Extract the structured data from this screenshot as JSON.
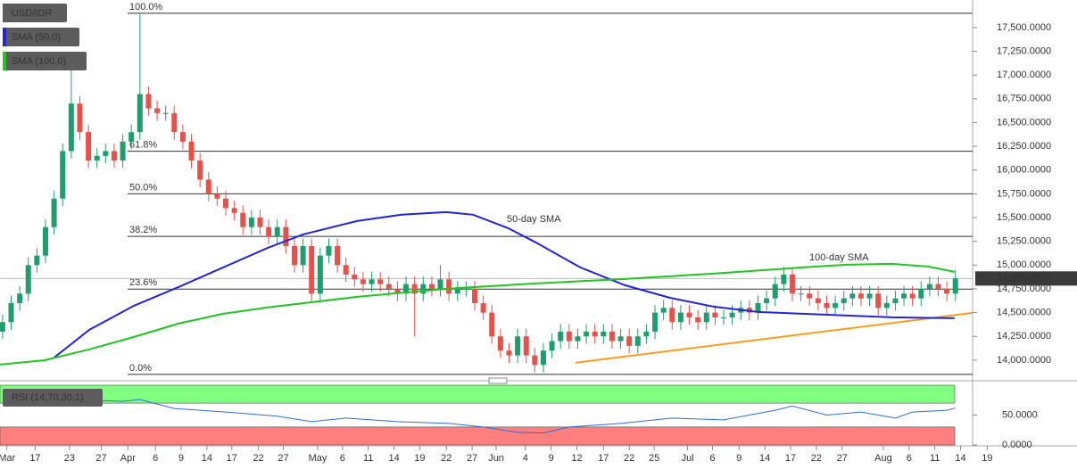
{
  "chart_data": [
    {
      "type": "candlestick",
      "candles": {
        "name": "USD/IDR",
        "up_color": "#1f9e6d",
        "down_color": "#e8504a",
        "open": [
          14300,
          14400,
          14600,
          14700,
          15000,
          15100,
          15400,
          15700,
          16200,
          16700,
          16400,
          16100,
          16150,
          16200,
          16100,
          16300,
          16400,
          16800,
          16650,
          16600,
          16600,
          16400,
          16300,
          16100,
          15900,
          15750,
          15700,
          15600,
          15550,
          15400,
          15500,
          15400,
          15300,
          15400,
          15200,
          15000,
          15200,
          14700,
          15100,
          15200,
          15000,
          14900,
          14850,
          14800,
          14850,
          14800,
          14750,
          14700,
          14800,
          14700,
          14800,
          14750,
          14850,
          14700,
          14750,
          14750,
          14600,
          14500,
          14250,
          14100,
          14050,
          14250,
          14050,
          13950,
          14100,
          14200,
          14300,
          14200,
          14250,
          14300,
          14250,
          14300,
          14200,
          14250,
          14150,
          14250,
          14300,
          14500,
          14550,
          14400,
          14500,
          14450,
          14400,
          14500,
          14450,
          14450,
          14500,
          14550,
          14500,
          14600,
          14650,
          14800,
          14900,
          14700,
          14700,
          14650,
          14600,
          14550,
          14600,
          14650,
          14700,
          14650,
          14700,
          14550,
          14600,
          14650,
          14700,
          14650,
          14750,
          14800,
          14750,
          14700
        ],
        "high": [
          14480,
          14680,
          14780,
          15080,
          15180,
          15480,
          15780,
          16280,
          17050,
          16780,
          16480,
          16230,
          16280,
          16280,
          16380,
          16480,
          17650,
          16880,
          16730,
          16680,
          16680,
          16480,
          16380,
          16180,
          15980,
          15830,
          15780,
          15680,
          15630,
          15580,
          15580,
          15480,
          15480,
          15480,
          15280,
          15280,
          15280,
          15180,
          15280,
          15280,
          15080,
          14980,
          14930,
          14930,
          14930,
          14880,
          14830,
          14880,
          14880,
          14880,
          14880,
          15000,
          14930,
          14830,
          14830,
          14830,
          14680,
          14580,
          14330,
          14180,
          14330,
          14330,
          14130,
          14180,
          14280,
          14380,
          14380,
          14330,
          14380,
          14380,
          14380,
          14380,
          14330,
          14330,
          14330,
          14380,
          14580,
          14630,
          14630,
          14580,
          14580,
          14530,
          14580,
          14580,
          14530,
          14580,
          14630,
          14630,
          14680,
          14730,
          14880,
          14980,
          14980,
          14780,
          14780,
          14730,
          14680,
          14680,
          14730,
          14780,
          14780,
          14780,
          14780,
          14680,
          14730,
          14780,
          14780,
          14830,
          14880,
          14880,
          14830,
          14950
        ],
        "low": [
          14220,
          14320,
          14520,
          14620,
          14920,
          15020,
          15320,
          15620,
          16120,
          16320,
          16020,
          16020,
          16070,
          16020,
          16020,
          16220,
          16320,
          16570,
          16520,
          16520,
          16320,
          16220,
          16020,
          15820,
          15670,
          15620,
          15520,
          15470,
          15320,
          15320,
          15320,
          15220,
          15220,
          15120,
          14920,
          14920,
          14620,
          14620,
          15020,
          14920,
          14820,
          14770,
          14720,
          14720,
          14720,
          14670,
          14620,
          14620,
          14250,
          14620,
          14670,
          14670,
          14620,
          14620,
          14670,
          14520,
          14420,
          14170,
          14020,
          13970,
          13970,
          13970,
          13870,
          13870,
          14020,
          14120,
          14120,
          14120,
          14170,
          14170,
          14170,
          14120,
          14120,
          14070,
          14070,
          14170,
          14220,
          14420,
          14320,
          14320,
          14370,
          14320,
          14320,
          14370,
          14370,
          14370,
          14420,
          14420,
          14420,
          14520,
          14570,
          14720,
          14620,
          14620,
          14570,
          14520,
          14470,
          14470,
          14520,
          14570,
          14570,
          14570,
          14470,
          14470,
          14520,
          14570,
          14570,
          14570,
          14670,
          14670,
          14620,
          14620
        ],
        "close": [
          14400,
          14600,
          14700,
          15000,
          15100,
          15400,
          15700,
          16200,
          16700,
          16400,
          16100,
          16150,
          16200,
          16100,
          16300,
          16400,
          16800,
          16650,
          16600,
          16600,
          16400,
          16300,
          16100,
          15900,
          15750,
          15700,
          15600,
          15550,
          15400,
          15500,
          15400,
          15300,
          15400,
          15200,
          15000,
          15200,
          14700,
          15100,
          15200,
          15000,
          14900,
          14850,
          14800,
          14850,
          14800,
          14750,
          14700,
          14800,
          14700,
          14800,
          14750,
          14850,
          14700,
          14750,
          14750,
          14600,
          14500,
          14250,
          14100,
          14050,
          14250,
          14050,
          13950,
          14100,
          14200,
          14300,
          14200,
          14250,
          14300,
          14250,
          14300,
          14200,
          14250,
          14150,
          14250,
          14300,
          14500,
          14550,
          14400,
          14500,
          14450,
          14400,
          14500,
          14450,
          14450,
          14500,
          14550,
          14500,
          14600,
          14650,
          14800,
          14900,
          14700,
          14700,
          14650,
          14600,
          14550,
          14600,
          14650,
          14700,
          14650,
          14700,
          14550,
          14600,
          14650,
          14700,
          14650,
          14750,
          14800,
          14750,
          14700,
          14860
        ]
      },
      "series": [
        {
          "name": "SMA (50,0)",
          "color": "#2323d8",
          "x": [
            5.9,
            10.1,
            15.3,
            20.5,
            25.7,
            30.9,
            35.0,
            41.3,
            46.5,
            51.7,
            54.8,
            58.9,
            62.1,
            67.3,
            72.5,
            77.7,
            82.8,
            88.0,
            93.2,
            98.4,
            103.6,
            110.9
          ],
          "values": [
            14019,
            14319,
            14572,
            14769,
            14976,
            15182,
            15323,
            15464,
            15530,
            15558,
            15530,
            15389,
            15239,
            14976,
            14788,
            14657,
            14563,
            14507,
            14488,
            14469,
            14450,
            14441
          ]
        },
        {
          "name": "SMA (100,0)",
          "color": "#22c41f",
          "x": [
            -0.3,
            4.9,
            10.1,
            15.3,
            20.5,
            25.7,
            30.9,
            41.3,
            51.7,
            62.1,
            72.5,
            82.8,
            93.2,
            98.4,
            103.6,
            107.8,
            110.9
          ],
          "values": [
            13953,
            13999,
            14113,
            14244,
            14385,
            14488,
            14554,
            14666,
            14751,
            14807,
            14854,
            14910,
            14976,
            15004,
            15013,
            14985,
            14929
          ]
        }
      ],
      "trendline": {
        "color": "#ff9a1a",
        "x": [
          66.7,
          113
        ],
        "values": [
          13972,
          14497
        ]
      },
      "annotations": [
        {
          "text": "50-day SMA",
          "color": "#4a4ae0"
        },
        {
          "text": "100-day SMA",
          "color": "#22b01f"
        }
      ],
      "fib_levels": [
        {
          "value": 17650,
          "label": "100.0%"
        },
        {
          "value": 16198,
          "label": "61.8%"
        },
        {
          "value": 15750,
          "label": "50.0%"
        },
        {
          "value": 15302,
          "label": "38.2%"
        },
        {
          "value": 14747,
          "label": "23.6%"
        },
        {
          "value": 13850,
          "label": "0.0%"
        }
      ],
      "last_price": {
        "value": 14859.05,
        "label": "14,859.0500"
      },
      "xlim": [
        -0.3,
        113
      ],
      "ylim": [
        13830,
        17790
      ],
      "yticks": [
        {
          "value": 14000,
          "label": "14,000.0000"
        },
        {
          "value": 14250,
          "label": "14,250.0000"
        },
        {
          "value": 14500,
          "label": "14,500.0000"
        },
        {
          "value": 14750,
          "label": "14,750.0000"
        },
        {
          "value": 15000,
          "label": "15,000.0000"
        },
        {
          "value": 15250,
          "label": "15,250.0000"
        },
        {
          "value": 15500,
          "label": "15,500.0000"
        },
        {
          "value": 15750,
          "label": "15,750.0000"
        },
        {
          "value": 16000,
          "label": "16,000.0000"
        },
        {
          "value": 16250,
          "label": "16,250.0000"
        },
        {
          "value": 16500,
          "label": "16,500.0000"
        },
        {
          "value": 16750,
          "label": "16,750.0000"
        },
        {
          "value": 17000,
          "label": "17,000.0000"
        },
        {
          "value": 17250,
          "label": "17,250.0000"
        },
        {
          "value": 17500,
          "label": "17,500.0000"
        }
      ],
      "xticks": [
        {
          "value": 0.5,
          "label": "Mar"
        },
        {
          "value": 3.8,
          "label": "17"
        },
        {
          "value": 7.8,
          "label": "23"
        },
        {
          "value": 11.5,
          "label": "27"
        },
        {
          "value": 14.6,
          "label": "Apr"
        },
        {
          "value": 17.8,
          "label": "6"
        },
        {
          "value": 20.8,
          "label": "9"
        },
        {
          "value": 23.8,
          "label": "14"
        },
        {
          "value": 26.7,
          "label": "17"
        },
        {
          "value": 29.8,
          "label": "22"
        },
        {
          "value": 32.7,
          "label": "27"
        },
        {
          "value": 36.7,
          "label": "May"
        },
        {
          "value": 39.6,
          "label": "6"
        },
        {
          "value": 42.6,
          "label": "11"
        },
        {
          "value": 45.6,
          "label": "14"
        },
        {
          "value": 48.6,
          "label": "19"
        },
        {
          "value": 51.7,
          "label": "22"
        },
        {
          "value": 54.7,
          "label": "27"
        },
        {
          "value": 57.5,
          "label": "Jun"
        },
        {
          "value": 60.9,
          "label": "4"
        },
        {
          "value": 63.9,
          "label": "9"
        },
        {
          "value": 66.9,
          "label": "12"
        },
        {
          "value": 70,
          "label": "17"
        },
        {
          "value": 73,
          "label": "22"
        },
        {
          "value": 75.9,
          "label": "25"
        },
        {
          "value": 79.8,
          "label": "Jul"
        },
        {
          "value": 82.7,
          "label": "6"
        },
        {
          "value": 85.8,
          "label": "9"
        },
        {
          "value": 88.8,
          "label": "14"
        },
        {
          "value": 91.8,
          "label": "17"
        },
        {
          "value": 94.8,
          "label": "22"
        },
        {
          "value": 97.8,
          "label": "27"
        },
        {
          "value": 102.6,
          "label": "Aug"
        },
        {
          "value": 105.6,
          "label": "6"
        },
        {
          "value": 108.6,
          "label": "11"
        },
        {
          "value": 111.6,
          "label": "14"
        },
        {
          "value": 114.7,
          "label": "19"
        }
      ]
    },
    {
      "type": "line",
      "series": [
        {
          "name": "RSI (14,70,30,1)",
          "color": "#2d6fd6",
          "x": [
            0,
            8,
            14,
            16,
            20,
            26,
            32,
            36,
            40,
            46,
            52,
            56,
            60,
            63,
            66,
            72,
            78,
            84,
            90,
            92,
            96,
            100,
            104,
            106,
            110,
            111
          ],
          "values": [
            70,
            76,
            73,
            76,
            61,
            55,
            48,
            39,
            45,
            39,
            36,
            30,
            21,
            20,
            30,
            36,
            45,
            42,
            58,
            65,
            50,
            55,
            45,
            55,
            58,
            62
          ]
        }
      ],
      "zones": [
        {
          "from": 70,
          "to": 100,
          "color": "#80ff80"
        },
        {
          "from": 0,
          "to": 30,
          "color": "#ff7f7f"
        }
      ],
      "ylim": [
        0,
        100
      ],
      "yticks": [
        {
          "value": 50,
          "label": "50.0000"
        },
        {
          "value": 0,
          "label": "0.0000"
        }
      ]
    }
  ]
}
